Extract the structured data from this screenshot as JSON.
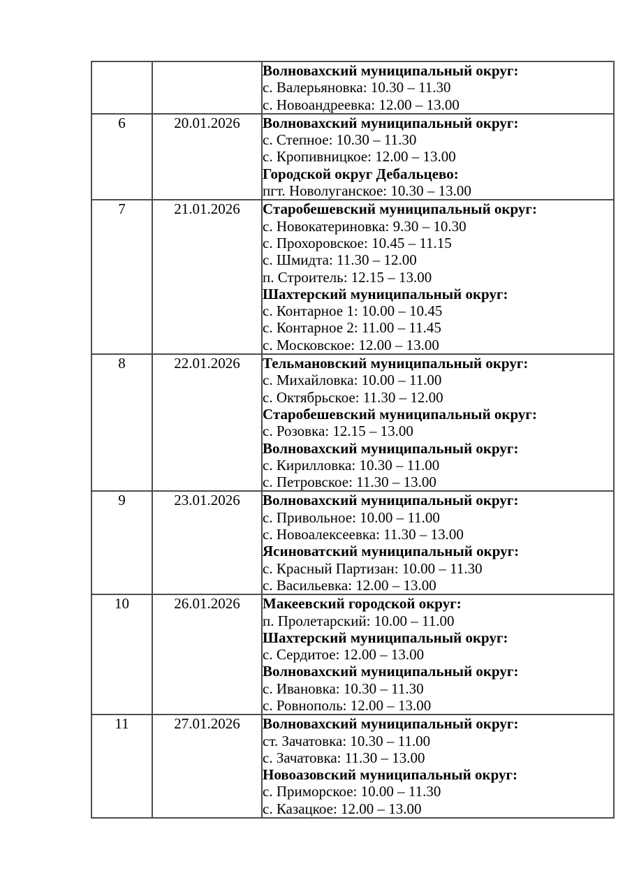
{
  "page": {
    "background_color": "#ffffff",
    "text_color": "#000000",
    "table_border_color": "#4d4d4d"
  },
  "table": {
    "columns": [
      "number",
      "date",
      "schedule"
    ],
    "rows": [
      {
        "number": "",
        "date": "",
        "lines": [
          {
            "text": "Волновахский муниципальный округ:",
            "bold": true
          },
          {
            "text": "с. Валерьяновка: 10.30 – 11.30",
            "bold": false
          },
          {
            "text": "с. Новоандреевка: 12.00 – 13.00",
            "bold": false
          }
        ]
      },
      {
        "number": "6",
        "date": "20.01.2026",
        "lines": [
          {
            "text": "Волновахский муниципальный округ:",
            "bold": true
          },
          {
            "text": "с. Степное: 10.30 – 11.30",
            "bold": false
          },
          {
            "text": "с. Кропивницкое: 12.00 – 13.00",
            "bold": false
          },
          {
            "text": "Городской округ Дебальцево:",
            "bold": true
          },
          {
            "text": "пгт. Новолуганское: 10.30 – 13.00",
            "bold": false
          }
        ]
      },
      {
        "number": "7",
        "date": "21.01.2026",
        "lines": [
          {
            "text": "Старобешевский муниципальный округ:",
            "bold": true
          },
          {
            "text": "с. Новокатериновка: 9.30 – 10.30",
            "bold": false
          },
          {
            "text": "с. Прохоровское: 10.45 – 11.15",
            "bold": false
          },
          {
            "text": "с. Шмидта: 11.30 – 12.00",
            "bold": false
          },
          {
            "text": "п. Строитель: 12.15 – 13.00",
            "bold": false
          },
          {
            "text": "Шахтерский муниципальный округ:",
            "bold": true
          },
          {
            "text": "с. Контарное 1: 10.00 – 10.45",
            "bold": false
          },
          {
            "text": "с. Контарное 2: 11.00 – 11.45",
            "bold": false
          },
          {
            "text": "с. Московское: 12.00 – 13.00",
            "bold": false
          }
        ]
      },
      {
        "number": "8",
        "date": "22.01.2026",
        "lines": [
          {
            "text": "Тельмановский муниципальный округ:",
            "bold": true
          },
          {
            "text": "с. Михайловка: 10.00 – 11.00",
            "bold": false
          },
          {
            "text": "с. Октябрьское: 11.30 – 12.00",
            "bold": false
          },
          {
            "text": "Старобешевский муниципальный округ:",
            "bold": true
          },
          {
            "text": "с. Розовка: 12.15 – 13.00",
            "bold": false
          },
          {
            "text": "Волновахский муниципальный округ:",
            "bold": true
          },
          {
            "text": "с. Кирилловка: 10.30 – 11.00",
            "bold": false
          },
          {
            "text": "с. Петровское: 11.30 – 13.00",
            "bold": false
          }
        ]
      },
      {
        "number": "9",
        "date": "23.01.2026",
        "lines": [
          {
            "text": "Волновахский муниципальный округ:",
            "bold": true
          },
          {
            "text": "с. Привольное: 10.00 – 11.00",
            "bold": false
          },
          {
            "text": "с. Новоалексеевка: 11.30 – 13.00",
            "bold": false
          },
          {
            "text": "Ясиноватский муниципальный округ:",
            "bold": true
          },
          {
            "text": "с. Красный Партизан: 10.00 – 11.30",
            "bold": false
          },
          {
            "text": "с. Васильевка: 12.00 – 13.00",
            "bold": false
          }
        ]
      },
      {
        "number": "10",
        "date": "26.01.2026",
        "lines": [
          {
            "text": "Макеевский городской округ:",
            "bold": true
          },
          {
            "text": "п. Пролетарский: 10.00 – 11.00",
            "bold": false
          },
          {
            "text": "Шахтерский муниципальный округ:",
            "bold": true
          },
          {
            "text": "с. Сердитое: 12.00 – 13.00",
            "bold": false
          },
          {
            "text": "Волновахский муниципальный округ:",
            "bold": true
          },
          {
            "text": "с. Ивановка: 10.30 – 11.30",
            "bold": false
          },
          {
            "text": "с. Ровнополь: 12.00 – 13.00",
            "bold": false
          }
        ]
      },
      {
        "number": "11",
        "date": "27.01.2026",
        "lines": [
          {
            "text": "Волновахский муниципальный округ:",
            "bold": true
          },
          {
            "text": "ст. Зачатовка: 10.30 – 11.00",
            "bold": false
          },
          {
            "text": "с. Зачатовка: 11.30 – 13.00",
            "bold": false
          },
          {
            "text": "Новоазовский муниципальный округ:",
            "bold": true
          },
          {
            "text": "с. Приморское: 10.00 – 11.30",
            "bold": false
          },
          {
            "text": "с. Казацкое: 12.00 – 13.00",
            "bold": false
          }
        ]
      }
    ]
  }
}
